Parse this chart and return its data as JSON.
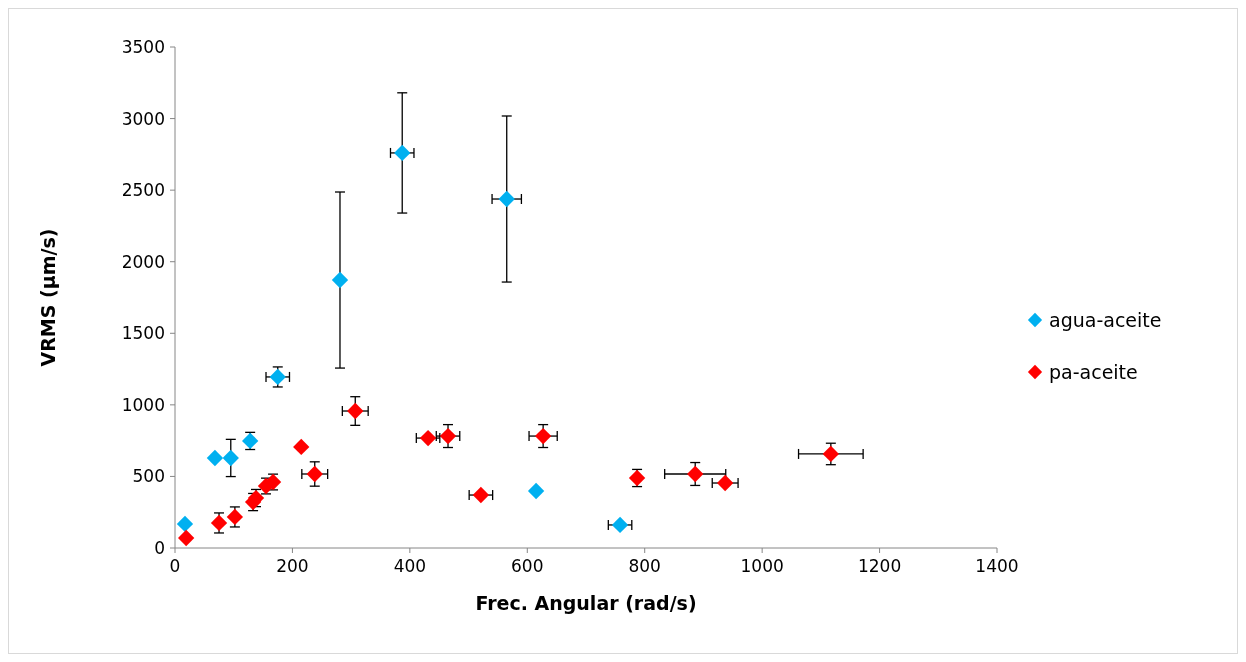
{
  "chart_data": {
    "type": "scatter",
    "xlabel": "Frec. Angular (rad/s)",
    "ylabel": "VRMS (µm/s)",
    "xlim": [
      0,
      1400
    ],
    "xticks": [
      0,
      200,
      400,
      600,
      800,
      1000,
      1200,
      1400
    ],
    "ylim": [
      0,
      3500
    ],
    "yticks": [
      0,
      500,
      1000,
      1500,
      2000,
      2500,
      3000,
      3500
    ],
    "grid": false,
    "legend": "right",
    "marker": "diamond",
    "series": [
      {
        "name": "agua-aceite",
        "color": "#00b0f0",
        "x": [
          17,
          68,
          95,
          128,
          175,
          281,
          387,
          565,
          615,
          758
        ],
        "values": [
          168,
          629,
          629,
          748,
          1195,
          1872,
          2760,
          2438,
          398,
          161
        ],
        "errors": [
          null,
          null,
          130,
          60,
          70,
          615,
          420,
          580,
          null,
          null
        ],
        "xerrors": [
          null,
          null,
          null,
          null,
          20,
          null,
          20,
          25,
          null,
          20
        ]
      },
      {
        "name": "pa-aceite",
        "color": "#ff0000",
        "x": [
          19,
          75,
          102,
          133,
          138,
          155,
          167,
          215,
          238,
          307,
          431,
          465,
          521,
          627,
          787,
          886,
          937,
          1117
        ],
        "values": [
          70,
          175,
          217,
          321,
          349,
          433,
          461,
          706,
          517,
          957,
          768,
          782,
          370,
          782,
          489,
          517,
          454,
          657
        ],
        "errors": [
          null,
          70,
          70,
          60,
          60,
          55,
          55,
          null,
          85,
          100,
          null,
          80,
          null,
          80,
          60,
          80,
          null,
          75
        ],
        "xerrors": [
          null,
          null,
          null,
          null,
          null,
          null,
          null,
          null,
          22,
          22,
          20,
          20,
          20,
          24,
          null,
          52,
          22,
          55
        ]
      }
    ]
  }
}
